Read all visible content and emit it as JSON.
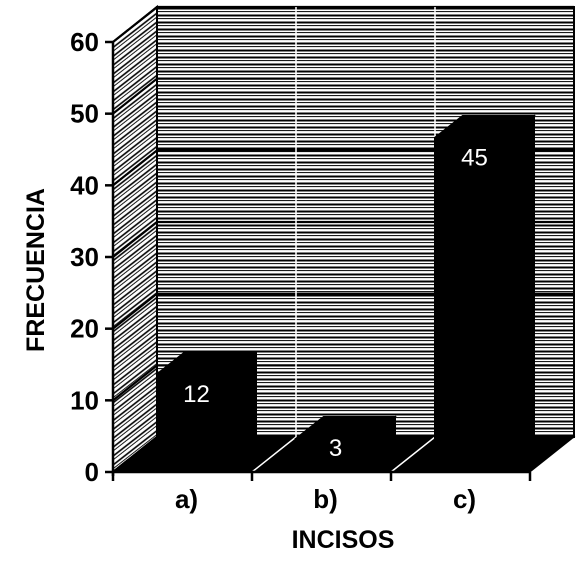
{
  "chart_data": {
    "type": "bar",
    "categories": [
      "a)",
      "b)",
      "c)"
    ],
    "values": [
      12,
      3,
      45
    ],
    "data_labels": [
      "12",
      "3",
      "45"
    ],
    "title": "",
    "xlabel": "INCISOS",
    "ylabel": "FRECUENCIA",
    "ylim": [
      0,
      60
    ],
    "yticks": [
      "0",
      "10",
      "20",
      "30",
      "40",
      "50",
      "60"
    ],
    "grid": true,
    "style": "3d",
    "bar_color": "#000000",
    "wall_color": "#ffffff",
    "gridline_color": "#000000"
  }
}
